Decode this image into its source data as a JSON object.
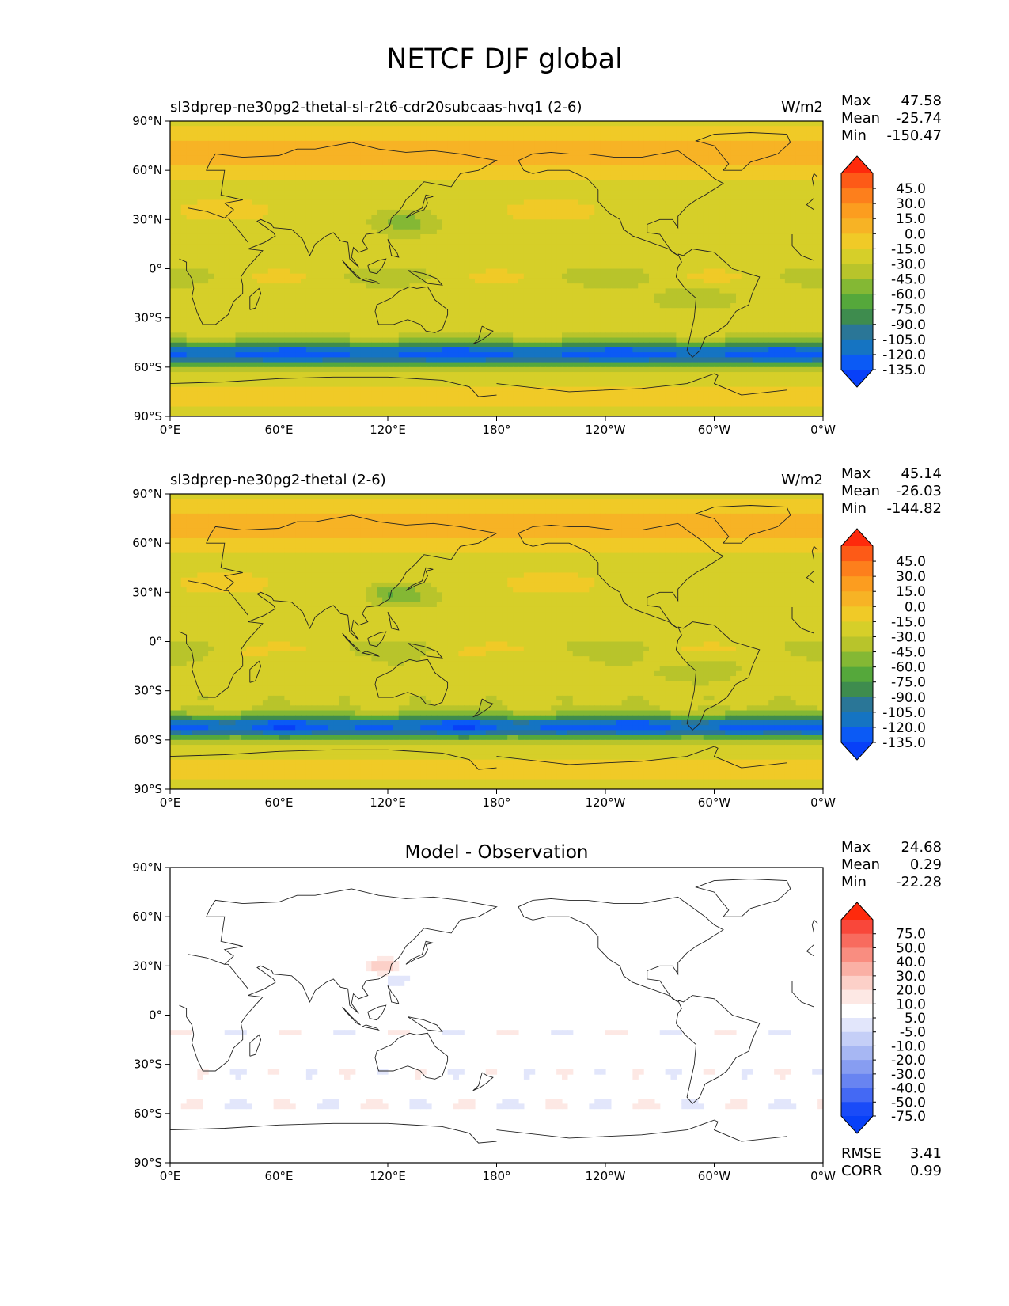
{
  "figure": {
    "title": "NETCF DJF global"
  },
  "chart_data": [
    {
      "type": "heatmap",
      "title": "sl3dprep-ne30pg2-thetal-sl-r2t6-cdr20subcaas-hvq1 (2-6)",
      "units": "W/m2",
      "stats": {
        "max_label": "Max",
        "max": "47.58",
        "mean_label": "Mean",
        "mean": "-25.74",
        "min_label": "Min",
        "min": "-150.47"
      },
      "x_ticks": [
        "0°E",
        "60°E",
        "120°E",
        "180°",
        "120°W",
        "60°W",
        "0°W"
      ],
      "y_ticks": [
        "90°N",
        "60°N",
        "30°N",
        "0°",
        "30°S",
        "60°S",
        "90°S"
      ],
      "xlim": [
        0,
        360
      ],
      "ylim": [
        -90,
        90
      ],
      "colorbar": {
        "labels": [
          "45.0",
          "30.0",
          "15.0",
          "0.0",
          "-15.0",
          "-30.0",
          "-45.0",
          "-60.0",
          "-75.0",
          "-90.0",
          "-105.0",
          "-120.0",
          "-135.0"
        ],
        "colors": [
          "#fe2a0c",
          "#fd5a17",
          "#fd7f1c",
          "#fc9d1f",
          "#f7b325",
          "#f0ca27",
          "#d6cf29",
          "#b8c42b",
          "#84b834",
          "#55a83b",
          "#3e8c4e",
          "#2a7697",
          "#1574c2",
          "#0b5af5",
          "#0840f8"
        ],
        "extend": "both"
      },
      "field": "model",
      "stats_footer": null
    },
    {
      "type": "heatmap",
      "title": "sl3dprep-ne30pg2-thetal (2-6)",
      "units": "W/m2",
      "stats": {
        "max_label": "Max",
        "max": "45.14",
        "mean_label": "Mean",
        "mean": "-26.03",
        "min_label": "Min",
        "min": "-144.82"
      },
      "x_ticks": [
        "0°E",
        "60°E",
        "120°E",
        "180°",
        "120°W",
        "60°W",
        "0°W"
      ],
      "y_ticks": [
        "90°N",
        "60°N",
        "30°N",
        "0°",
        "30°S",
        "60°S",
        "90°S"
      ],
      "xlim": [
        0,
        360
      ],
      "ylim": [
        -90,
        90
      ],
      "colorbar": {
        "labels": [
          "45.0",
          "30.0",
          "15.0",
          "0.0",
          "-15.0",
          "-30.0",
          "-45.0",
          "-60.0",
          "-75.0",
          "-90.0",
          "-105.0",
          "-120.0",
          "-135.0"
        ],
        "colors": [
          "#fe2a0c",
          "#fd5a17",
          "#fd7f1c",
          "#fc9d1f",
          "#f7b325",
          "#f0ca27",
          "#d6cf29",
          "#b8c42b",
          "#84b834",
          "#55a83b",
          "#3e8c4e",
          "#2a7697",
          "#1574c2",
          "#0b5af5",
          "#0840f8"
        ],
        "extend": "both"
      },
      "field": "obs",
      "stats_footer": null
    },
    {
      "type": "heatmap",
      "title": "Model - Observation",
      "units": "",
      "stats": {
        "max_label": "Max",
        "max": "24.68",
        "mean_label": "Mean",
        "mean": "0.29",
        "min_label": "Min",
        "min": "-22.28"
      },
      "x_ticks": [
        "0°E",
        "60°E",
        "120°E",
        "180°",
        "120°W",
        "60°W",
        "0°W"
      ],
      "y_ticks": [
        "90°N",
        "60°N",
        "30°N",
        "0°",
        "30°S",
        "60°S",
        "90°S"
      ],
      "xlim": [
        0,
        360
      ],
      "ylim": [
        -90,
        90
      ],
      "colorbar": {
        "labels": [
          "75.0",
          "50.0",
          "40.0",
          "30.0",
          "20.0",
          "10.0",
          "5.0",
          "-5.0",
          "-10.0",
          "-20.0",
          "-30.0",
          "-40.0",
          "-50.0",
          "-75.0"
        ],
        "colors": [
          "#fe2a0c",
          "#f9473a",
          "#f86b5e",
          "#f98d80",
          "#fab0a5",
          "#fcd0c8",
          "#fde8e4",
          "#ffffff",
          "#e2e6fb",
          "#c5cff7",
          "#a7b7f3",
          "#879df1",
          "#6884f1",
          "#4469f4",
          "#1a4bf8",
          "#0840f8"
        ],
        "extend": "both"
      },
      "field": "diff",
      "stats_footer": {
        "rmse_label": "RMSE",
        "rmse": "3.41",
        "corr_label": "CORR",
        "corr": "0.99"
      }
    }
  ]
}
